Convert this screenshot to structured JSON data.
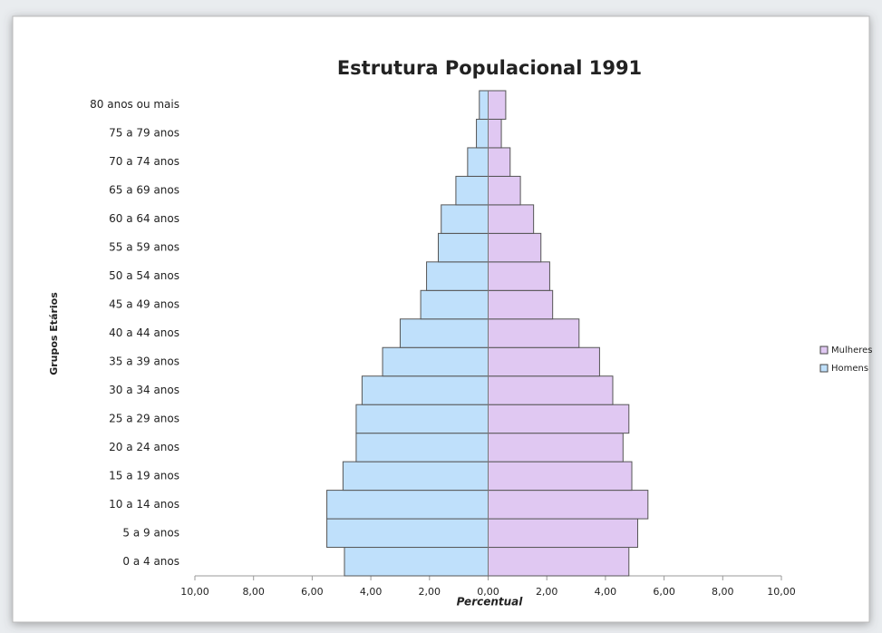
{
  "chart_data": {
    "type": "pyramid",
    "title": "Estrutura Populacional 1991",
    "xlabel": "Percentual",
    "ylabel": "Grupos Etários",
    "categories": [
      "0 a 4 anos",
      "5 a 9 anos",
      "10 a 14 anos",
      "15 a 19 anos",
      "20 a 24 anos",
      "25 a 29 anos",
      "30 a 34 anos",
      "35 a 39 anos",
      "40 a 44 anos",
      "45 a 49 anos",
      "50 a 54 anos",
      "55 a 59 anos",
      "60 a 64 anos",
      "65 a 69 anos",
      "70 a 74 anos",
      "75 a 79 anos",
      "80 anos ou mais"
    ],
    "series": [
      {
        "name": "Mulheres",
        "color": "#e0c8f2",
        "values": [
          4.8,
          5.1,
          5.45,
          4.9,
          4.6,
          4.8,
          4.25,
          3.8,
          3.1,
          2.2,
          2.1,
          1.8,
          1.55,
          1.1,
          0.75,
          0.45,
          0.6
        ]
      },
      {
        "name": "Homens",
        "color": "#bfe0fb",
        "values": [
          -4.9,
          -5.5,
          -5.5,
          -4.95,
          -4.5,
          -4.5,
          -4.3,
          -3.6,
          -3.0,
          -2.3,
          -2.1,
          -1.7,
          -1.6,
          -1.1,
          -0.7,
          -0.4,
          -0.3
        ]
      }
    ],
    "xlim": [
      -10,
      10
    ],
    "xticks": [
      {
        "value": -10,
        "label": "10,00"
      },
      {
        "value": -8,
        "label": "8,00"
      },
      {
        "value": -6,
        "label": "6,00"
      },
      {
        "value": -4,
        "label": "4,00"
      },
      {
        "value": -2,
        "label": "2,00"
      },
      {
        "value": 0,
        "label": "0,00"
      },
      {
        "value": 2,
        "label": "2,00"
      },
      {
        "value": 4,
        "label": "4,00"
      },
      {
        "value": 6,
        "label": "6,00"
      },
      {
        "value": 8,
        "label": "8,00"
      },
      {
        "value": 10,
        "label": "10,00"
      }
    ],
    "legend": "right"
  }
}
